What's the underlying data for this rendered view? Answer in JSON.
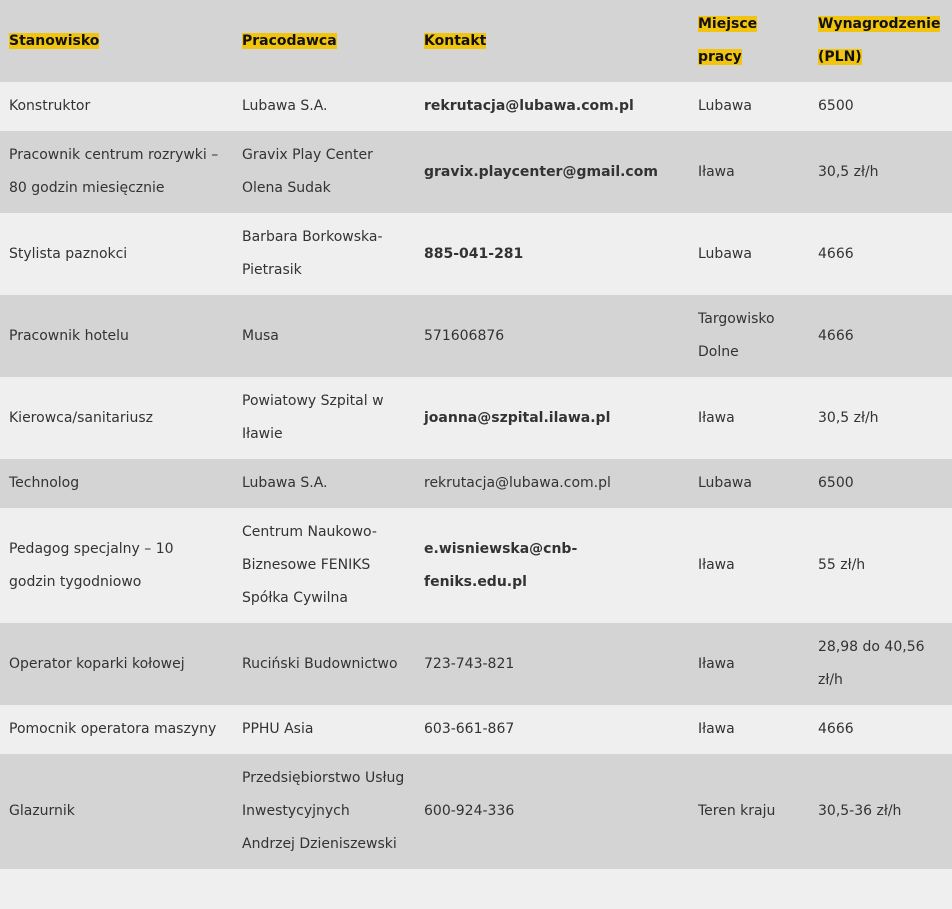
{
  "colors": {
    "highlight": "#f1c40f",
    "row_light": "#efefef",
    "row_dark": "#d4d4d4"
  },
  "headers": [
    "Stanowisko",
    "Pracodawca",
    "Kontakt",
    "Miejsce pracy",
    "Wynagrodzenie (PLN)"
  ],
  "rows": [
    {
      "position": "Konstruktor",
      "employer": "Lubawa S.A.",
      "contact": "rekrutacja@lubawa.com.pl",
      "contact_bold": true,
      "place": "Lubawa",
      "salary": "6500"
    },
    {
      "position": "Pracownik centrum rozrywki – 80 godzin miesięcznie",
      "employer": "Gravix Play Center Olena Sudak",
      "contact": "gravix.playcenter@gmail.com",
      "contact_bold": true,
      "place": "Iława",
      "salary": "30,5 zł/h"
    },
    {
      "position": "Stylista paznokci",
      "employer": "Barbara Borkowska-Pietrasik",
      "contact": "885-041-281",
      "contact_bold": true,
      "place": "Lubawa",
      "salary": "4666"
    },
    {
      "position": "Pracownik hotelu",
      "employer": "Musa",
      "contact": "571606876",
      "contact_bold": false,
      "place": "Targowisko Dolne",
      "salary": "4666"
    },
    {
      "position": "Kierowca/sanitariusz",
      "employer": "Powiatowy Szpital w Iławie",
      "contact": "joanna@szpital.ilawa.pl",
      "contact_bold": true,
      "place": "Iława",
      "salary": "30,5 zł/h"
    },
    {
      "position": "Technolog",
      "employer": "Lubawa S.A.",
      "contact": "rekrutacja@lubawa.com.pl",
      "contact_bold": false,
      "place": "Lubawa",
      "salary": "6500"
    },
    {
      "position": "Pedagog specjalny – 10 godzin tygodniowo",
      "employer": "Centrum Naukowo-Biznesowe FENIKS Spółka Cywilna",
      "contact": "e.wisniewska@cnb-feniks.edu.pl",
      "contact_bold": true,
      "place": "Iława",
      "salary": "55 zł/h"
    },
    {
      "position": "Operator koparki kołowej",
      "employer": "Ruciński Budownictwo",
      "contact": "723-743-821",
      "contact_bold": false,
      "place": "Iława",
      "salary": "28,98 do 40,56 zł/h"
    },
    {
      "position": "Pomocnik operatora maszyny",
      "employer": "PPHU Asia",
      "contact": "603-661-867",
      "contact_bold": false,
      "place": "Iława",
      "salary": "4666"
    },
    {
      "position": "Glazurnik",
      "employer": "Przedsiębiorstwo Usług Inwestycyjnych Andrzej Dzieniszewski",
      "contact": "600-924-336",
      "contact_bold": false,
      "place": "Teren kraju",
      "salary": "30,5-36 zł/h"
    }
  ]
}
